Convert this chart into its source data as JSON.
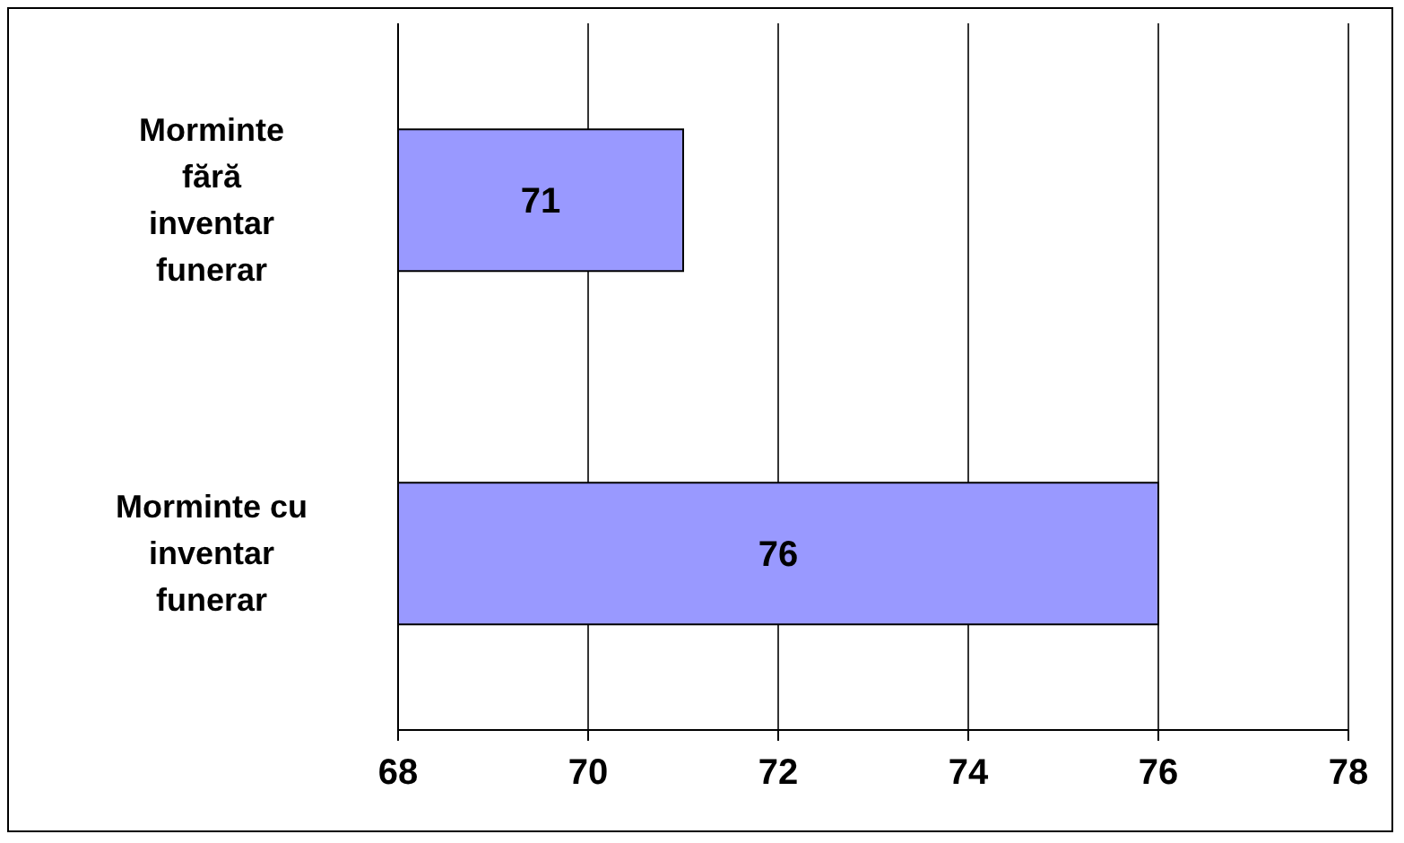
{
  "chart_data": {
    "type": "bar",
    "orientation": "horizontal",
    "categories": [
      "Morminte fără inventar funerar",
      "Morminte cu inventar funerar"
    ],
    "values": [
      71,
      76
    ],
    "color": "#9999ff",
    "xlim": [
      68,
      78
    ],
    "xticks": [
      68,
      70,
      72,
      74,
      76,
      78
    ],
    "grid": "x",
    "data_labels": true
  }
}
